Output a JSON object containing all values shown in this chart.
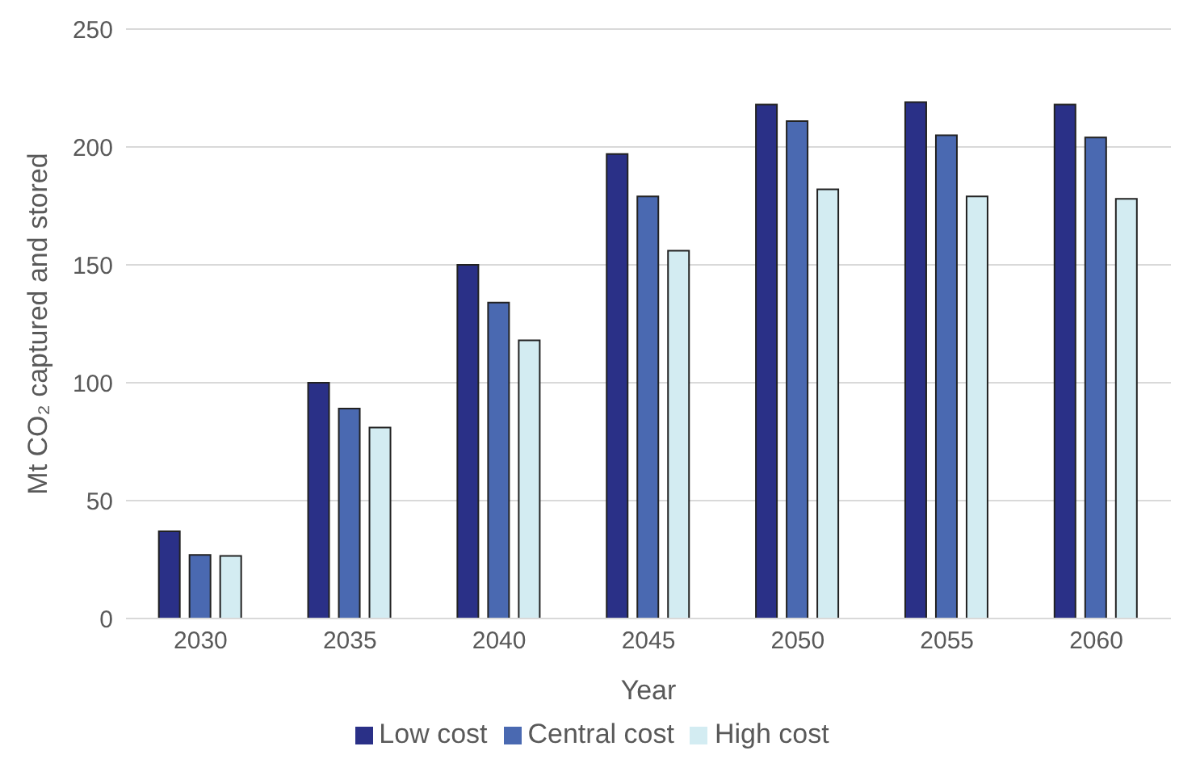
{
  "chart_data": {
    "type": "bar",
    "xlabel": "Year",
    "ylabel": "Mt CO₂ captured and stored",
    "categories": [
      "2030",
      "2035",
      "2040",
      "2045",
      "2050",
      "2055",
      "2060"
    ],
    "series": [
      {
        "name": "Low cost",
        "color": "#2a3087",
        "values": [
          37,
          100,
          150,
          197,
          218,
          219,
          218
        ]
      },
      {
        "name": "Central cost",
        "color": "#4a69b1",
        "values": [
          27,
          89,
          134,
          179,
          211,
          205,
          204
        ]
      },
      {
        "name": "High cost",
        "color": "#d3ecf2",
        "values": [
          26.5,
          81,
          118,
          156,
          182,
          179,
          178
        ]
      }
    ],
    "ylim": [
      0,
      250
    ],
    "yticks": [
      0,
      50,
      100,
      150,
      200,
      250
    ],
    "grid": "y",
    "legend": "bottom"
  }
}
